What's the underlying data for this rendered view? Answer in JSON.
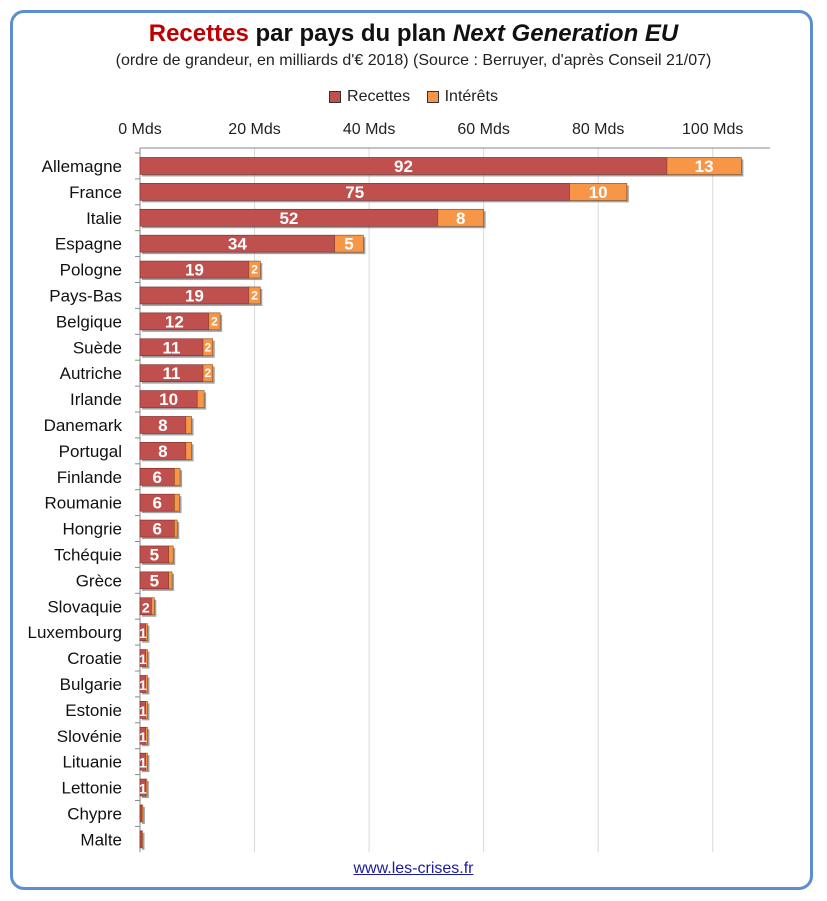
{
  "title": {
    "part1": "Recettes",
    "part2": " par pays du plan ",
    "part3": "Next Generation EU"
  },
  "subtitle": "(ordre de grandeur, en milliards d'€ 2018) (Source : Berruyer, d'après Conseil 21/07)",
  "footer": "www.les-crises.fr",
  "colors": {
    "recettes": "#c0504d",
    "interets": "#f79646",
    "frame": "#5b8fd0"
  },
  "chart_data": {
    "type": "bar",
    "orientation": "horizontal",
    "stacked": true,
    "xlim": [
      0,
      110
    ],
    "x_ticks": [
      0,
      20,
      40,
      60,
      80,
      100
    ],
    "x_tick_labels": [
      "0 Mds",
      "20 Mds",
      "40 Mds",
      "60 Mds",
      "80 Mds",
      "100 Mds"
    ],
    "x_axis_position": "top",
    "grid": true,
    "legend_position": "top",
    "categories": [
      "Allemagne",
      "France",
      "Italie",
      "Espagne",
      "Pologne",
      "Pays-Bas",
      "Belgique",
      "Suède",
      "Autriche",
      "Irlande",
      "Danemark",
      "Portugal",
      "Finlande",
      "Roumanie",
      "Hongrie",
      "Tchéquie",
      "Grèce",
      "Slovaquie",
      "Luxembourg",
      "Croatie",
      "Bulgarie",
      "Estonie",
      "Slovénie",
      "Lituanie",
      "Lettonie",
      "Chypre",
      "Malte"
    ],
    "series": [
      {
        "name": "Recettes",
        "values": [
          92,
          75,
          52,
          34,
          19,
          19,
          12,
          11,
          11,
          10,
          8,
          8,
          6,
          6,
          6,
          5,
          5,
          2,
          1,
          1,
          1,
          1,
          1,
          1,
          1,
          0.3,
          0.2
        ],
        "labels": [
          "92",
          "75",
          "52",
          "34",
          "19",
          "19",
          "12",
          "11",
          "11",
          "10",
          "8",
          "8",
          "6",
          "6",
          "6",
          "5",
          "5",
          "2",
          "1",
          "1",
          "1",
          "1",
          "1",
          "1",
          "1",
          "",
          ""
        ]
      },
      {
        "name": "Intérêts",
        "values": [
          13,
          10,
          8,
          5,
          2,
          2,
          2,
          1.7,
          1.7,
          1.2,
          1,
          1,
          1,
          0.9,
          0.5,
          0.8,
          0.6,
          0.5,
          0.3,
          0.3,
          0.3,
          0.3,
          0.3,
          0.3,
          0.2,
          0.2,
          0.1
        ],
        "labels": [
          "13",
          "10",
          "8",
          "5",
          "2",
          "2",
          "2",
          "2",
          "2",
          "",
          "",
          "",
          "",
          "",
          "",
          "",
          "",
          "",
          "",
          "",
          "",
          "",
          "",
          "",
          "",
          "",
          ""
        ]
      }
    ]
  }
}
